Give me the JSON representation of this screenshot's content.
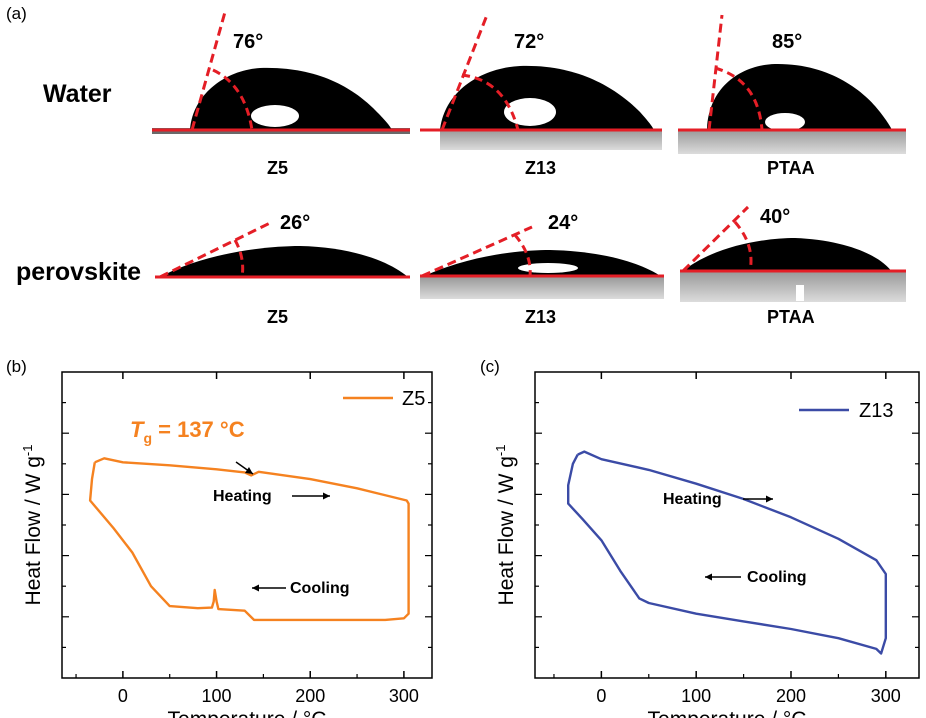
{
  "panel_a": {
    "label": "(a)",
    "rows": [
      {
        "label": "Water",
        "drops": [
          {
            "angle": "76°",
            "sample": "Z5"
          },
          {
            "angle": "72°",
            "sample": "Z13"
          },
          {
            "angle": "85°",
            "sample": "PTAA"
          }
        ]
      },
      {
        "label": "perovskite",
        "drops": [
          {
            "angle": "26°",
            "sample": "Z5"
          },
          {
            "angle": "24°",
            "sample": "Z13"
          },
          {
            "angle": "40°",
            "sample": "PTAA"
          }
        ]
      }
    ],
    "colors": {
      "contact_line": "#e41e26",
      "drop": "#000000"
    }
  },
  "panel_b": {
    "label": "(b)",
    "tg_annotation": {
      "symbol": "T",
      "subscript": "g",
      "value": " = 137 °C"
    }
  },
  "panel_c": {
    "label": "(c)"
  },
  "chart_data": [
    {
      "type": "line",
      "xlabel": "Temperature / °C",
      "ylabel": "Heat Flow / W g",
      "ylabel_sup": "-1",
      "xlim": [
        -65,
        330
      ],
      "ylim": [
        0,
        10
      ],
      "xticks": [
        0,
        100,
        200,
        300
      ],
      "yticks_labeled": false,
      "color": "#f58220",
      "legend_position": "top-right",
      "series": [
        {
          "name": "Z5",
          "x": [
            -30,
            -20,
            0,
            50,
            100,
            130,
            137,
            145,
            200,
            250,
            303,
            305,
            305,
            300,
            280,
            200,
            140,
            130,
            102,
            100,
            98,
            97,
            95,
            80,
            50,
            30,
            10,
            -10,
            -35,
            -33,
            -30
          ],
          "y": [
            7.05,
            7.18,
            7.05,
            6.95,
            6.82,
            6.72,
            6.62,
            6.74,
            6.5,
            6.2,
            5.8,
            5.7,
            2.1,
            1.95,
            1.9,
            1.9,
            1.9,
            2.2,
            2.25,
            2.5,
            2.88,
            2.5,
            2.3,
            2.28,
            2.35,
            3.0,
            4.1,
            4.9,
            5.8,
            6.5,
            7.05
          ]
        }
      ],
      "annotations": [
        {
          "text": "Heating",
          "arrow": "right"
        },
        {
          "text": "Cooling",
          "arrow": "left"
        }
      ]
    },
    {
      "type": "line",
      "xlabel": "Temperature / °C",
      "ylabel": "Heat Flow / W g",
      "ylabel_sup": "-1",
      "xlim": [
        -70,
        335
      ],
      "ylim": [
        0,
        10
      ],
      "xticks": [
        0,
        100,
        200,
        300
      ],
      "yticks_labeled": false,
      "color": "#3b4ba6",
      "legend_position": "top-right",
      "series": [
        {
          "name": "Z13",
          "x": [
            -25,
            -18,
            0,
            50,
            100,
            150,
            200,
            250,
            290,
            300,
            300,
            295,
            290,
            250,
            200,
            150,
            100,
            50,
            40,
            20,
            0,
            -20,
            -35,
            -35,
            -30,
            -25
          ],
          "y": [
            7.3,
            7.4,
            7.15,
            6.8,
            6.35,
            5.85,
            5.25,
            4.55,
            3.85,
            3.4,
            1.3,
            0.8,
            0.95,
            1.3,
            1.6,
            1.85,
            2.1,
            2.45,
            2.6,
            3.5,
            4.5,
            5.2,
            5.7,
            6.3,
            7.0,
            7.3
          ]
        }
      ],
      "annotations": [
        {
          "text": "Heating",
          "arrow": "right"
        },
        {
          "text": "Cooling",
          "arrow": "left"
        }
      ]
    }
  ]
}
